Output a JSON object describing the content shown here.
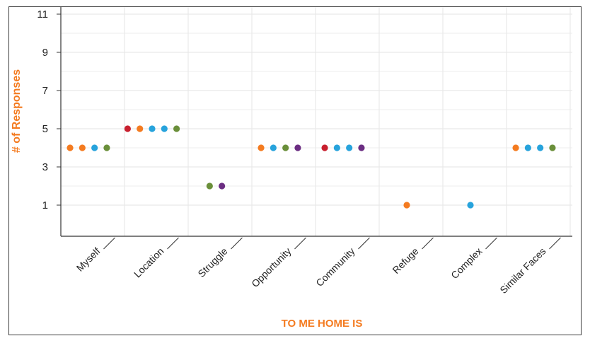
{
  "chart_data": {
    "type": "scatter",
    "xlabel": "TO ME HOME IS",
    "ylabel": "# of Responses",
    "yticks": [
      "1",
      "3",
      "5",
      "7",
      "9",
      "11"
    ],
    "ylim": [
      0,
      11
    ],
    "grid": true,
    "categories": [
      "Myself",
      "Location",
      "Struggle",
      "Opportunity",
      "Community",
      "Refuge",
      "Complex",
      "Similar Faces"
    ],
    "points": [
      {
        "category": "Myself",
        "y": 4,
        "colors": [
          "#f47b20",
          "#f47b20",
          "#27a3dc",
          "#6a8f3a"
        ]
      },
      {
        "category": "Location",
        "y": 5,
        "colors": [
          "#c8202f",
          "#f47b20",
          "#27a3dc",
          "#27a3dc",
          "#6a8f3a"
        ]
      },
      {
        "category": "Struggle",
        "y": 2,
        "colors": [
          "#6a8f3a",
          "#6b2d82"
        ]
      },
      {
        "category": "Opportunity",
        "y": 4,
        "colors": [
          "#f47b20",
          "#27a3dc",
          "#6a8f3a",
          "#6b2d82"
        ]
      },
      {
        "category": "Community",
        "y": 4,
        "colors": [
          "#c8202f",
          "#27a3dc",
          "#27a3dc",
          "#6b2d82"
        ]
      },
      {
        "category": "Refuge",
        "y": 1,
        "colors": [
          "#f47b20"
        ]
      },
      {
        "category": "Complex",
        "y": 1,
        "colors": [
          "#27a3dc"
        ]
      },
      {
        "category": "Similar Faces",
        "y": 4,
        "colors": [
          "#f47b20",
          "#27a3dc",
          "#27a3dc",
          "#6a8f3a"
        ]
      }
    ],
    "accent_color": "#f47b20"
  }
}
